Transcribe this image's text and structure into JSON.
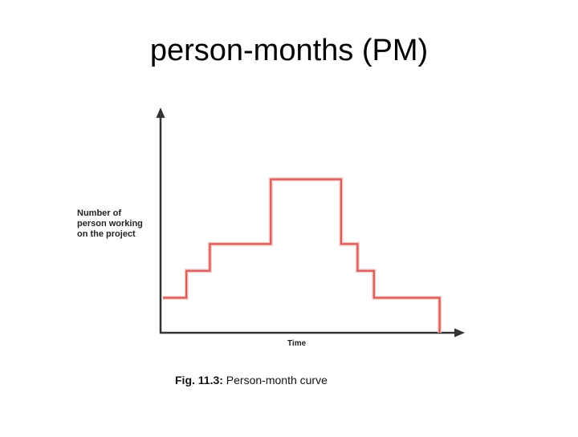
{
  "slide": {
    "title": "person-months (PM)"
  },
  "figure": {
    "ylabel_lines": [
      "Number of",
      "person working",
      "on the project"
    ],
    "xlabel": "Time",
    "caption_prefix": "Fig. 11.3:",
    "caption_text": " Person-month curve"
  },
  "chart_data": {
    "type": "line",
    "description_style": "step",
    "x_ticks_shown": false,
    "y_ticks_shown": false,
    "series": [
      {
        "color": "#d9534f",
        "steps": [
          {
            "level": 1,
            "span": 1
          },
          {
            "level": 2,
            "span": 1
          },
          {
            "level": 3,
            "span": 2.6
          },
          {
            "level": 5.4,
            "span": 3
          },
          {
            "level": 3,
            "span": 0.7
          },
          {
            "level": 2,
            "span": 0.7
          },
          {
            "level": 1,
            "span": 2.8
          }
        ]
      }
    ],
    "colors": {
      "axis": "#333333",
      "curve": "#d9534f",
      "curve_shadow": "#f2c6c4"
    }
  }
}
